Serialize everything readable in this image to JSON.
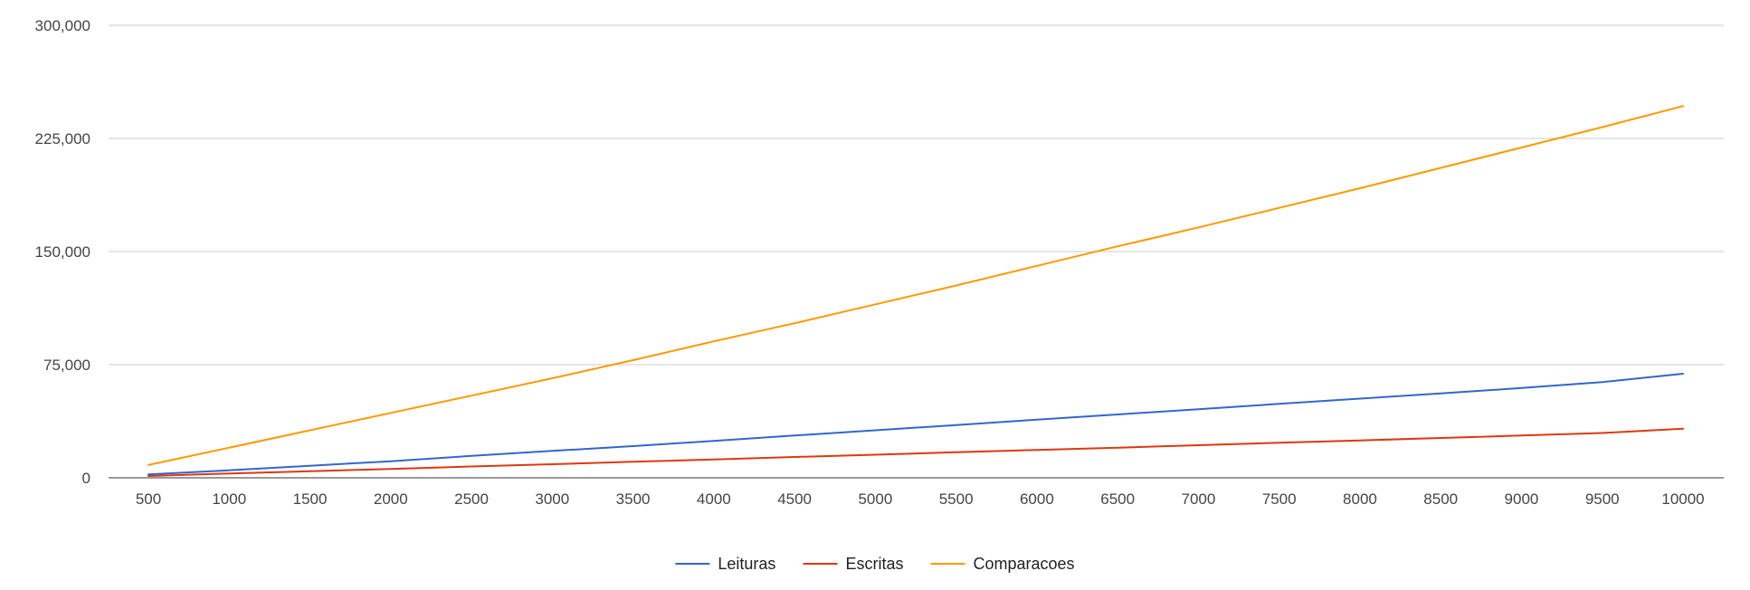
{
  "chart_data": {
    "type": "line",
    "title": "",
    "xlabel": "",
    "ylabel": "",
    "x": [
      500,
      1000,
      1500,
      2000,
      2500,
      3000,
      3500,
      4000,
      4500,
      5000,
      5500,
      6000,
      6500,
      7000,
      7500,
      8000,
      8500,
      9000,
      9500,
      10000
    ],
    "x_tick_labels": [
      "500",
      "1000",
      "1500",
      "2000",
      "2500",
      "3000",
      "3500",
      "4000",
      "4500",
      "5000",
      "5500",
      "6000",
      "6500",
      "7000",
      "7500",
      "8000",
      "8500",
      "9000",
      "9500",
      "10000"
    ],
    "ylim": [
      0,
      300000
    ],
    "y_ticks": [
      0,
      75000,
      150000,
      225000,
      300000
    ],
    "y_tick_labels": [
      "0",
      "75,000",
      "150,000",
      "225,000",
      "300,000"
    ],
    "grid": true,
    "legend_position": "bottom",
    "series": [
      {
        "name": "Leituras",
        "color": "#3366cc",
        "values": [
          2200,
          5000,
          8000,
          11000,
          14500,
          17800,
          21000,
          24500,
          28000,
          31500,
          35000,
          38500,
          42000,
          45500,
          49000,
          52500,
          56000,
          59500,
          63500,
          69000
        ]
      },
      {
        "name": "Escritas",
        "color": "#dc3912",
        "values": [
          1200,
          2800,
          4300,
          5900,
          7500,
          9000,
          10600,
          12200,
          13800,
          15300,
          16900,
          18500,
          20000,
          21600,
          23200,
          24800,
          26400,
          28000,
          29700,
          32500
        ]
      },
      {
        "name": "Comparacoes",
        "color": "#ff9900",
        "values": [
          8500,
          20000,
          31500,
          43000,
          54500,
          66000,
          78000,
          90500,
          102500,
          115000,
          127500,
          140500,
          153500,
          166000,
          179000,
          192000,
          205500,
          219000,
          232500,
          246500
        ]
      }
    ]
  }
}
